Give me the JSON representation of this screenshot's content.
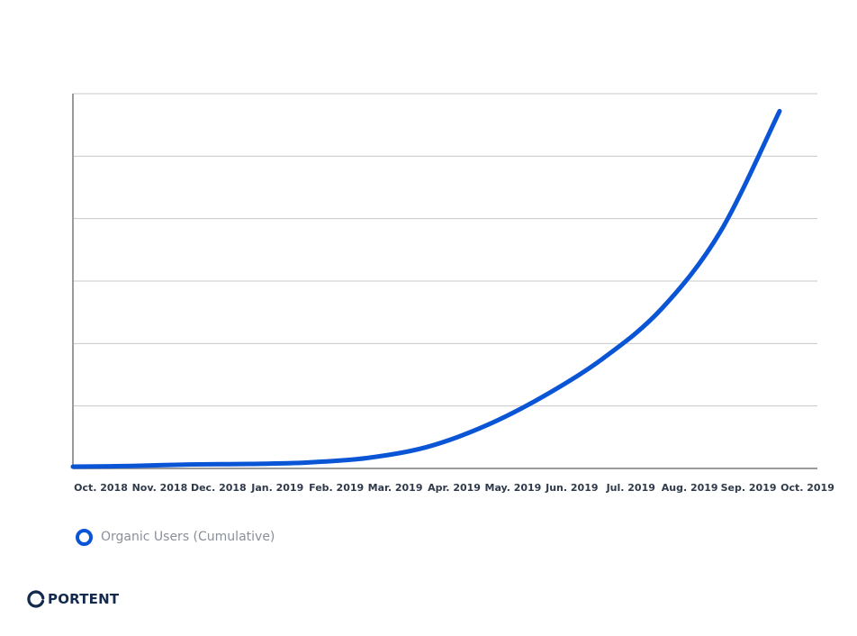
{
  "chart_data": {
    "type": "line",
    "title": "",
    "xlabel": "",
    "ylabel": "",
    "categories": [
      "Oct. 2018",
      "Nov. 2018",
      "Dec. 2018",
      "Jan. 2019",
      "Feb. 2019",
      "Mar. 2019",
      "Apr. 2019",
      "May. 2019",
      "Jun. 2019",
      "Jul. 2019",
      "Aug. 2019",
      "Sep. 2019",
      "Oct. 2019"
    ],
    "series": [
      {
        "name": "Organic Users (Cumulative)",
        "color": "#0a54d6",
        "values": [
          0.07,
          0.1,
          0.16,
          0.18,
          0.24,
          0.42,
          0.85,
          1.7,
          2.9,
          4.4,
          6.4,
          9.5,
          14.3
        ]
      }
    ],
    "ylim": [
      0,
      15
    ],
    "y_gridlines": 6,
    "y_tick_labels_shown": false,
    "grid": true,
    "legend_position": "bottom-left"
  },
  "legend": {
    "label": "Organic Users (Cumulative)",
    "marker_color": "#0a54d6"
  },
  "logo": {
    "text": "PORTENT",
    "icon": "portent-logo-icon"
  }
}
